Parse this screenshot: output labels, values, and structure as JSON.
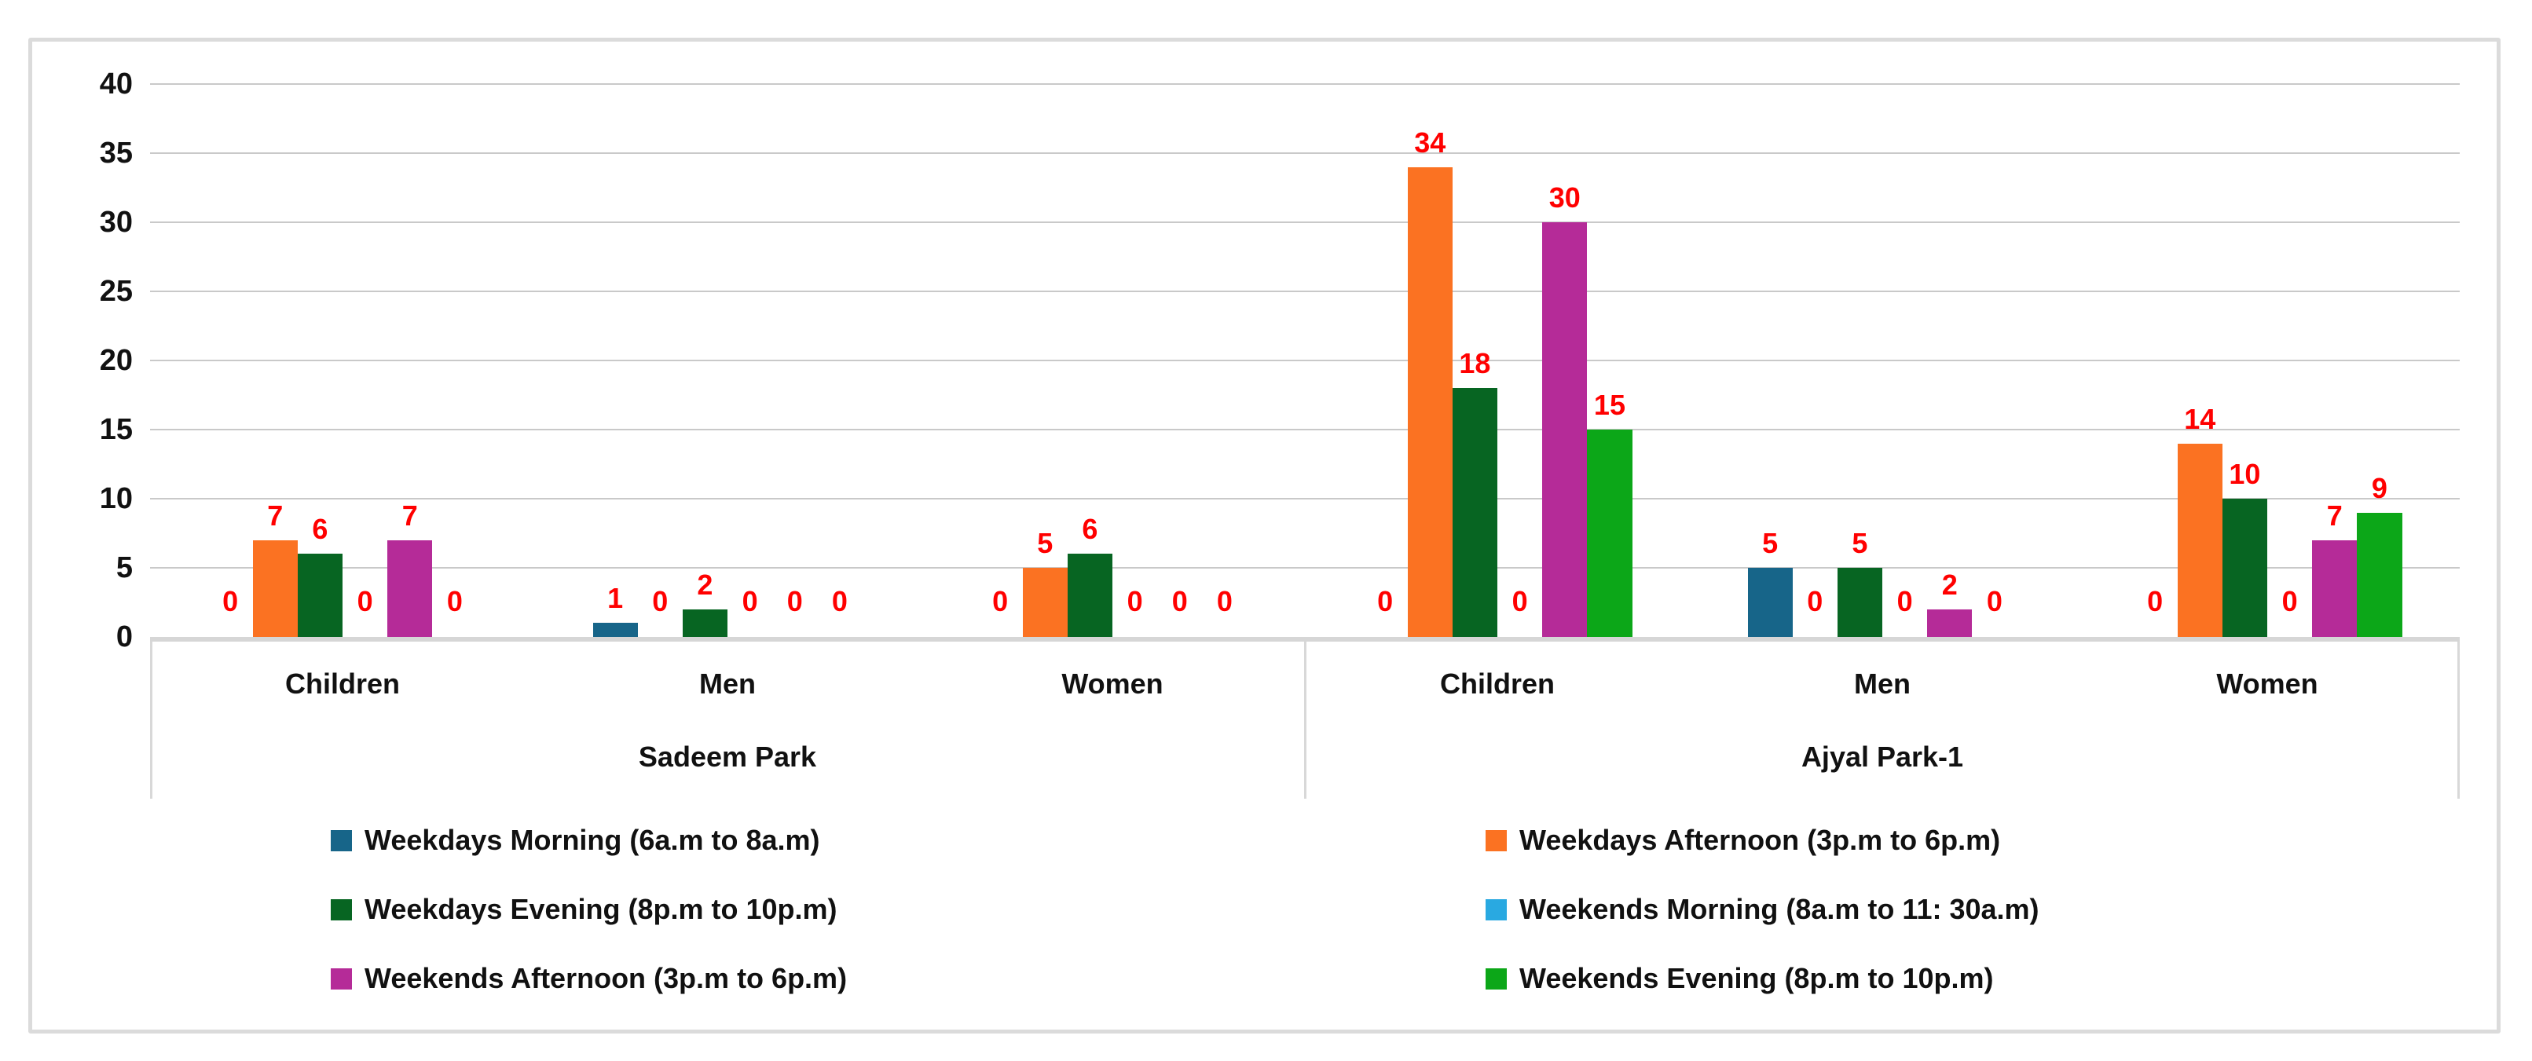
{
  "chart_data": {
    "type": "bar",
    "title": "",
    "y_axis": {
      "min": 0,
      "max": 40,
      "step": 5,
      "ticks": [
        0,
        5,
        10,
        15,
        20,
        25,
        30,
        35,
        40
      ]
    },
    "grid": true,
    "legend_position": "bottom",
    "value_label_color": "#FF0000",
    "series": [
      {
        "name": "Weekdays Morning (6a.m to 8a.m)",
        "color": "#176589"
      },
      {
        "name": "Weekdays Afternoon (3p.m to 6p.m)",
        "color": "#FB7222"
      },
      {
        "name": "Weekdays Evening (8p.m to 10p.m)",
        "color": "#076522"
      },
      {
        "name": "Weekends Morning (8a.m to 11: 30a.m)",
        "color": "#29A9E1"
      },
      {
        "name": "Weekends Afternoon (3p.m to 6p.m)",
        "color": "#B52B98"
      },
      {
        "name": "Weekends Evening (8p.m to 10p.m)",
        "color": "#0CA718"
      }
    ],
    "parks": [
      {
        "label": "Sadeem Park",
        "categories": [
          {
            "label": "Children",
            "values": [
              0,
              7,
              6,
              0,
              7,
              0
            ]
          },
          {
            "label": "Men",
            "values": [
              1,
              0,
              2,
              0,
              0,
              0
            ]
          },
          {
            "label": "Women",
            "values": [
              0,
              5,
              6,
              0,
              0,
              0
            ]
          }
        ]
      },
      {
        "label": "Ajyal Park-1",
        "categories": [
          {
            "label": "Children",
            "values": [
              0,
              34,
              18,
              0,
              30,
              15
            ]
          },
          {
            "label": "Men",
            "values": [
              5,
              0,
              5,
              0,
              2,
              0
            ]
          },
          {
            "label": "Women",
            "values": [
              0,
              14,
              10,
              0,
              7,
              9
            ]
          }
        ]
      }
    ]
  }
}
